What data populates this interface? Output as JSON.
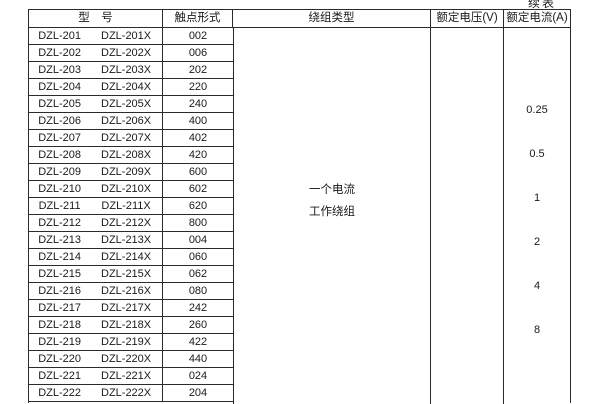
{
  "page": {
    "continued_label": "续表"
  },
  "table": {
    "headers": {
      "model": "型　号",
      "contact_form": "触点形式",
      "winding_type": "绕组类型",
      "rated_voltage": "额定电压(V)",
      "rated_current": "额定电流(A)"
    },
    "winding_type_value": [
      "一个电流",
      "工作绕组"
    ],
    "rated_voltage_value": "",
    "rated_current_values": [
      "0.25",
      "0.5",
      "1",
      "2",
      "4",
      "8"
    ],
    "rows": [
      {
        "model": "DZL-201",
        "model_x": "DZL-201X",
        "contact_form": "002"
      },
      {
        "model": "DZL-202",
        "model_x": "DZL-202X",
        "contact_form": "006"
      },
      {
        "model": "DZL-203",
        "model_x": "DZL-203X",
        "contact_form": "202"
      },
      {
        "model": "DZL-204",
        "model_x": "DZL-204X",
        "contact_form": "220"
      },
      {
        "model": "DZL-205",
        "model_x": "DZL-205X",
        "contact_form": "240"
      },
      {
        "model": "DZL-206",
        "model_x": "DZL-206X",
        "contact_form": "400"
      },
      {
        "model": "DZL-207",
        "model_x": "DZL-207X",
        "contact_form": "402"
      },
      {
        "model": "DZL-208",
        "model_x": "DZL-208X",
        "contact_form": "420"
      },
      {
        "model": "DZL-209",
        "model_x": "DZL-209X",
        "contact_form": "600"
      },
      {
        "model": "DZL-210",
        "model_x": "DZL-210X",
        "contact_form": "602"
      },
      {
        "model": "DZL-211",
        "model_x": "DZL-211X",
        "contact_form": "620"
      },
      {
        "model": "DZL-212",
        "model_x": "DZL-212X",
        "contact_form": "800"
      },
      {
        "model": "DZL-213",
        "model_x": "DZL-213X",
        "contact_form": "004"
      },
      {
        "model": "DZL-214",
        "model_x": "DZL-214X",
        "contact_form": "060"
      },
      {
        "model": "DZL-215",
        "model_x": "DZL-215X",
        "contact_form": "062"
      },
      {
        "model": "DZL-216",
        "model_x": "DZL-216X",
        "contact_form": "080"
      },
      {
        "model": "DZL-217",
        "model_x": "DZL-217X",
        "contact_form": "242"
      },
      {
        "model": "DZL-218",
        "model_x": "DZL-218X",
        "contact_form": "260"
      },
      {
        "model": "DZL-219",
        "model_x": "DZL-219X",
        "contact_form": "422"
      },
      {
        "model": "DZL-220",
        "model_x": "DZL-220X",
        "contact_form": "440"
      },
      {
        "model": "DZL-221",
        "model_x": "DZL-221X",
        "contact_form": "024"
      },
      {
        "model": "DZL-222",
        "model_x": "DZL-222X",
        "contact_form": "204"
      }
    ]
  }
}
